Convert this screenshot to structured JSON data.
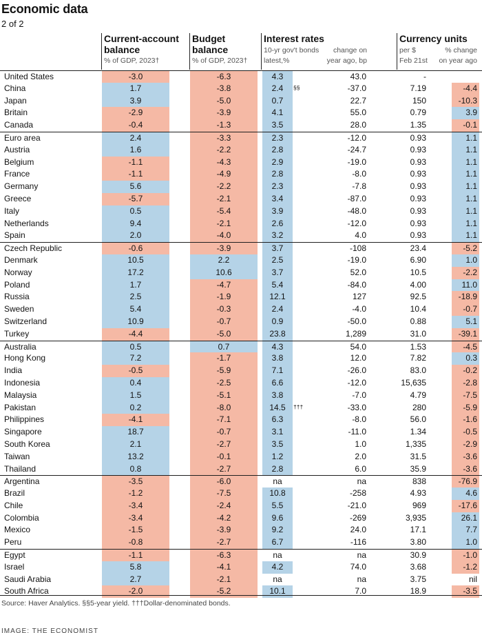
{
  "title": "Economic data",
  "subtitle": "2 of 2",
  "columns": {
    "current_account": {
      "title_1": "Current-account",
      "title_2": "balance",
      "sub": "% of GDP, 2023†"
    },
    "budget": {
      "title_1": "Budget",
      "title_2": "balance",
      "sub": "% of GDP, 2023†"
    },
    "interest": {
      "title": "Interest rates",
      "sub_1a": "10-yr gov't bonds",
      "sub_1b": "change on",
      "sub_2a": "latest,%",
      "sub_2b": "year ago, bp"
    },
    "currency": {
      "title": "Currency units",
      "sub_1a": "per $",
      "sub_1b": "% change",
      "sub_2a": "Feb 21st",
      "sub_2b": "on year ago"
    }
  },
  "rows": [
    {
      "country": "United States",
      "ca": "-3.0",
      "bb": "-6.3",
      "ir": "4.3",
      "note": "",
      "chg": "43.0",
      "cur": "-",
      "pct": "",
      "group_start": true
    },
    {
      "country": "China",
      "ca": "1.7",
      "bb": "-3.8",
      "ir": "2.4",
      "note": "§§",
      "chg": "-37.0",
      "cur": "7.19",
      "pct": "-4.4"
    },
    {
      "country": "Japan",
      "ca": "3.9",
      "bb": "-5.0",
      "ir": "0.7",
      "note": "",
      "chg": "22.7",
      "cur": "150",
      "pct": "-10.3"
    },
    {
      "country": "Britain",
      "ca": "-2.9",
      "bb": "-3.9",
      "ir": "4.1",
      "note": "",
      "chg": "55.0",
      "cur": "0.79",
      "pct": "3.9"
    },
    {
      "country": "Canada",
      "ca": "-0.4",
      "bb": "-1.3",
      "ir": "3.5",
      "note": "",
      "chg": "28.0",
      "cur": "1.35",
      "pct": "-0.1"
    },
    {
      "country": "Euro area",
      "ca": "2.4",
      "bb": "-3.3",
      "ir": "2.3",
      "note": "",
      "chg": "-12.0",
      "cur": "0.93",
      "pct": "1.1",
      "group_start": true
    },
    {
      "country": "Austria",
      "ca": "1.6",
      "bb": "-2.2",
      "ir": "2.8",
      "note": "",
      "chg": "-24.7",
      "cur": "0.93",
      "pct": "1.1"
    },
    {
      "country": "Belgium",
      "ca": "-1.1",
      "bb": "-4.3",
      "ir": "2.9",
      "note": "",
      "chg": "-19.0",
      "cur": "0.93",
      "pct": "1.1"
    },
    {
      "country": "France",
      "ca": "-1.1",
      "bb": "-4.9",
      "ir": "2.8",
      "note": "",
      "chg": "-8.0",
      "cur": "0.93",
      "pct": "1.1"
    },
    {
      "country": "Germany",
      "ca": "5.6",
      "bb": "-2.2",
      "ir": "2.3",
      "note": "",
      "chg": "-7.8",
      "cur": "0.93",
      "pct": "1.1"
    },
    {
      "country": "Greece",
      "ca": "-5.7",
      "bb": "-2.1",
      "ir": "3.4",
      "note": "",
      "chg": "-87.0",
      "cur": "0.93",
      "pct": "1.1"
    },
    {
      "country": "Italy",
      "ca": "0.5",
      "bb": "-5.4",
      "ir": "3.9",
      "note": "",
      "chg": "-48.0",
      "cur": "0.93",
      "pct": "1.1"
    },
    {
      "country": "Netherlands",
      "ca": "9.4",
      "bb": "-2.1",
      "ir": "2.6",
      "note": "",
      "chg": "-12.0",
      "cur": "0.93",
      "pct": "1.1"
    },
    {
      "country": "Spain",
      "ca": "2.0",
      "bb": "-4.0",
      "ir": "3.2",
      "note": "",
      "chg": "4.0",
      "cur": "0.93",
      "pct": "1.1"
    },
    {
      "country": "Czech Republic",
      "ca": "-0.6",
      "bb": "-3.9",
      "ir": "3.7",
      "note": "",
      "chg": "-108",
      "cur": "23.4",
      "pct": "-5.2",
      "group_start": true
    },
    {
      "country": "Denmark",
      "ca": "10.5",
      "bb": "2.2",
      "ir": "2.5",
      "note": "",
      "chg": "-19.0",
      "cur": "6.90",
      "pct": "1.0"
    },
    {
      "country": "Norway",
      "ca": "17.2",
      "bb": "10.6",
      "ir": "3.7",
      "note": "",
      "chg": "52.0",
      "cur": "10.5",
      "pct": "-2.2"
    },
    {
      "country": "Poland",
      "ca": "1.7",
      "bb": "-4.7",
      "ir": "5.4",
      "note": "",
      "chg": "-84.0",
      "cur": "4.00",
      "pct": "11.0"
    },
    {
      "country": "Russia",
      "ca": "2.5",
      "bb": "-1.9",
      "ir": "12.1",
      "note": "",
      "chg": "127",
      "cur": "92.5",
      "pct": "-18.9"
    },
    {
      "country": "Sweden",
      "ca": "5.4",
      "bb": "-0.3",
      "ir": "2.4",
      "note": "",
      "chg": "-4.0",
      "cur": "10.4",
      "pct": "-0.7"
    },
    {
      "country": "Switzerland",
      "ca": "10.9",
      "bb": "-0.7",
      "ir": "0.9",
      "note": "",
      "chg": "-50.0",
      "cur": "0.88",
      "pct": "5.1"
    },
    {
      "country": "Turkey",
      "ca": "-4.4",
      "bb": "-5.0",
      "ir": "23.8",
      "note": "",
      "chg": "1,289",
      "cur": "31.0",
      "pct": "-39.1"
    },
    {
      "country": "Australia",
      "ca": "0.5",
      "bb": "0.7",
      "ir": "4.3",
      "note": "",
      "chg": "54.0",
      "cur": "1.53",
      "pct": "-4.5",
      "group_start": true
    },
    {
      "country": "Hong Kong",
      "ca": "7.2",
      "bb": "-1.7",
      "ir": "3.8",
      "note": "",
      "chg": "12.0",
      "cur": "7.82",
      "pct": "0.3"
    },
    {
      "country": "India",
      "ca": "-0.5",
      "bb": "-5.9",
      "ir": "7.1",
      "note": "",
      "chg": "-26.0",
      "cur": "83.0",
      "pct": "-0.2"
    },
    {
      "country": "Indonesia",
      "ca": "0.4",
      "bb": "-2.5",
      "ir": "6.6",
      "note": "",
      "chg": "-12.0",
      "cur": "15,635",
      "pct": "-2.8"
    },
    {
      "country": "Malaysia",
      "ca": "1.5",
      "bb": "-5.1",
      "ir": "3.8",
      "note": "",
      "chg": "-7.0",
      "cur": "4.79",
      "pct": "-7.5"
    },
    {
      "country": "Pakistan",
      "ca": "0.2",
      "bb": "-8.0",
      "ir": "14.5",
      "note": "†††",
      "chg": "-33.0",
      "cur": "280",
      "pct": "-5.9"
    },
    {
      "country": "Philippines",
      "ca": "-4.1",
      "bb": "-7.1",
      "ir": "6.3",
      "note": "",
      "chg": "-8.0",
      "cur": "56.0",
      "pct": "-1.6"
    },
    {
      "country": "Singapore",
      "ca": "18.7",
      "bb": "-0.7",
      "ir": "3.1",
      "note": "",
      "chg": "-11.0",
      "cur": "1.34",
      "pct": "-0.5"
    },
    {
      "country": "South Korea",
      "ca": "2.1",
      "bb": "-2.7",
      "ir": "3.5",
      "note": "",
      "chg": "1.0",
      "cur": "1,335",
      "pct": "-2.9"
    },
    {
      "country": "Taiwan",
      "ca": "13.2",
      "bb": "-0.1",
      "ir": "1.2",
      "note": "",
      "chg": "2.0",
      "cur": "31.5",
      "pct": "-3.6"
    },
    {
      "country": "Thailand",
      "ca": "0.8",
      "bb": "-2.7",
      "ir": "2.8",
      "note": "",
      "chg": "6.0",
      "cur": "35.9",
      "pct": "-3.6"
    },
    {
      "country": "Argentina",
      "ca": "-3.5",
      "bb": "-6.0",
      "ir": "na",
      "note": "",
      "chg": "na",
      "cur": "838",
      "pct": "-76.9",
      "group_start": true
    },
    {
      "country": "Brazil",
      "ca": "-1.2",
      "bb": "-7.5",
      "ir": "10.8",
      "note": "",
      "chg": "-258",
      "cur": "4.93",
      "pct": "4.6"
    },
    {
      "country": "Chile",
      "ca": "-3.4",
      "bb": "-2.4",
      "ir": "5.5",
      "note": "",
      "chg": "-21.0",
      "cur": "969",
      "pct": "-17.6"
    },
    {
      "country": "Colombia",
      "ca": "-3.4",
      "bb": "-4.2",
      "ir": "9.6",
      "note": "",
      "chg": "-269",
      "cur": "3,935",
      "pct": "26.1"
    },
    {
      "country": "Mexico",
      "ca": "-1.5",
      "bb": "-3.9",
      "ir": "9.2",
      "note": "",
      "chg": "24.0",
      "cur": "17.1",
      "pct": "7.7"
    },
    {
      "country": "Peru",
      "ca": "-0.8",
      "bb": "-2.7",
      "ir": "6.7",
      "note": "",
      "chg": "-116",
      "cur": "3.80",
      "pct": "1.0"
    },
    {
      "country": "Egypt",
      "ca": "-1.1",
      "bb": "-6.3",
      "ir": "na",
      "note": "",
      "chg": "na",
      "cur": "30.9",
      "pct": "-1.0",
      "group_start": true
    },
    {
      "country": "Israel",
      "ca": "5.8",
      "bb": "-4.1",
      "ir": "4.2",
      "note": "",
      "chg": "74.0",
      "cur": "3.68",
      "pct": "-1.2"
    },
    {
      "country": "Saudi Arabia",
      "ca": "2.7",
      "bb": "-2.1",
      "ir": "na",
      "note": "",
      "chg": "na",
      "cur": "3.75",
      "pct": "nil"
    },
    {
      "country": "South Africa",
      "ca": "-2.0",
      "bb": "-5.2",
      "ir": "10.1",
      "note": "",
      "chg": "7.0",
      "cur": "18.9",
      "pct": "-3.5"
    }
  ],
  "source": "Source: Haver Analytics. §§5-year yield. †††Dollar-denominated bonds.",
  "credit": "IMAGE: THE ECONOMIST",
  "colors": {
    "negative": "#f5b9a5",
    "positive": "#b5d3e7",
    "rule": "#1e1e1e"
  }
}
